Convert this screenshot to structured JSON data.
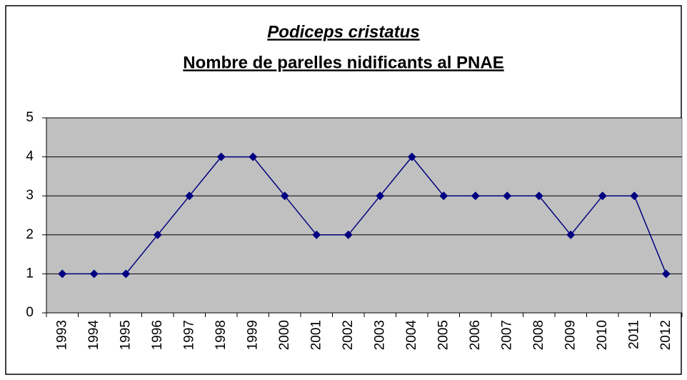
{
  "chart_data": {
    "type": "line",
    "title": "Podiceps cristatus",
    "subtitle": "Nombre de parelles nidificants al PNAE",
    "categories": [
      "1993",
      "1994",
      "1995",
      "1996",
      "1997",
      "1998",
      "1999",
      "2000",
      "2001",
      "2002",
      "2003",
      "2004",
      "2005",
      "2006",
      "2007",
      "2008",
      "2009",
      "2010",
      "2011",
      "2012"
    ],
    "series": [
      {
        "name": "Podiceps cristatus",
        "color": "#000080",
        "values": [
          1,
          1,
          1,
          2,
          3,
          4,
          4,
          3,
          2,
          2,
          3,
          4,
          3,
          3,
          3,
          3,
          2,
          3,
          3,
          1
        ]
      }
    ],
    "ylim": [
      0,
      5
    ],
    "yticks": [
      0,
      1,
      2,
      3,
      4,
      5
    ],
    "grid": true,
    "plot_background": "#c0c0c0"
  }
}
